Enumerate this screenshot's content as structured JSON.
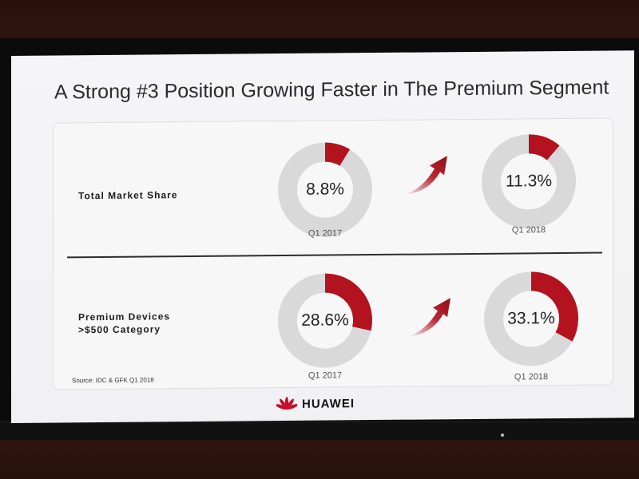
{
  "slide": {
    "title": "A Strong #3 Position Growing Faster in The Premium Segment",
    "source": "Source: IDC & GFK Q1 2018",
    "brand": "HUAWEI"
  },
  "colors": {
    "accent": "#b3121f",
    "ring": "#d9d9d9",
    "text": "#222222"
  },
  "chart_data": [
    {
      "type": "pie",
      "label": "Total Market Share",
      "categories": [
        "Q1 2017",
        "Q1 2018"
      ],
      "values": [
        8.8,
        11.3
      ],
      "value_labels": [
        "8.8%",
        "11.3%"
      ],
      "unit": "%"
    },
    {
      "type": "pie",
      "label_lines": [
        "Premium Devices",
        ">$500 Category"
      ],
      "categories": [
        "Q1 2017",
        "Q1 2018"
      ],
      "values": [
        28.6,
        33.1
      ],
      "value_labels": [
        "28.6%",
        "33.1%"
      ],
      "unit": "%"
    }
  ]
}
